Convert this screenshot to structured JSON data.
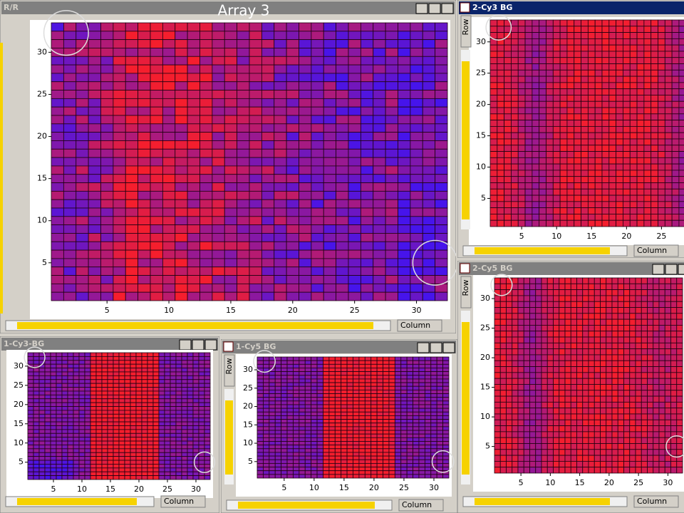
{
  "overlay_title": "Array 3",
  "windows": [
    {
      "title": "R/R",
      "column_label": "Column",
      "xlim": [
        0.5,
        32.5
      ],
      "ylim": [
        0.5,
        33.5
      ],
      "xticks": [
        5,
        10,
        15,
        20,
        25,
        30
      ],
      "yticks": [
        5,
        10,
        15,
        20,
        25,
        30
      ]
    },
    {
      "title": "2-Cy3 BG",
      "column_label": "Column",
      "row_label": "Row",
      "xlim": [
        0.5,
        32.5
      ],
      "ylim": [
        0.5,
        33.5
      ],
      "xticks": [
        5,
        10,
        15,
        20,
        25
      ],
      "yticks": [
        5,
        10,
        15,
        20,
        25,
        30
      ]
    },
    {
      "title": "2-Cy5 BG",
      "column_label": "Column",
      "row_label": "Row",
      "xlim": [
        0.5,
        32.5
      ],
      "ylim": [
        0.5,
        33.5
      ],
      "xticks": [
        5,
        10,
        15,
        20,
        25,
        30
      ],
      "yticks": [
        5,
        10,
        15,
        20,
        25,
        30
      ]
    },
    {
      "title": "1-Cy3-BG",
      "column_label": "Column",
      "xlim": [
        0.5,
        32.5
      ],
      "ylim": [
        0.5,
        33.5
      ],
      "xticks": [
        5,
        10,
        15,
        20,
        25,
        30
      ],
      "yticks": [
        5,
        10,
        15,
        20,
        25,
        30
      ]
    },
    {
      "title": "1-Cy5 BG",
      "column_label": "Column",
      "row_label": "Row",
      "xlim": [
        0.5,
        32.5
      ],
      "ylim": [
        0.5,
        33.5
      ],
      "xticks": [
        5,
        10,
        15,
        20,
        25,
        30
      ],
      "yticks": [
        5,
        10,
        15,
        20,
        25,
        30
      ]
    }
  ]
}
